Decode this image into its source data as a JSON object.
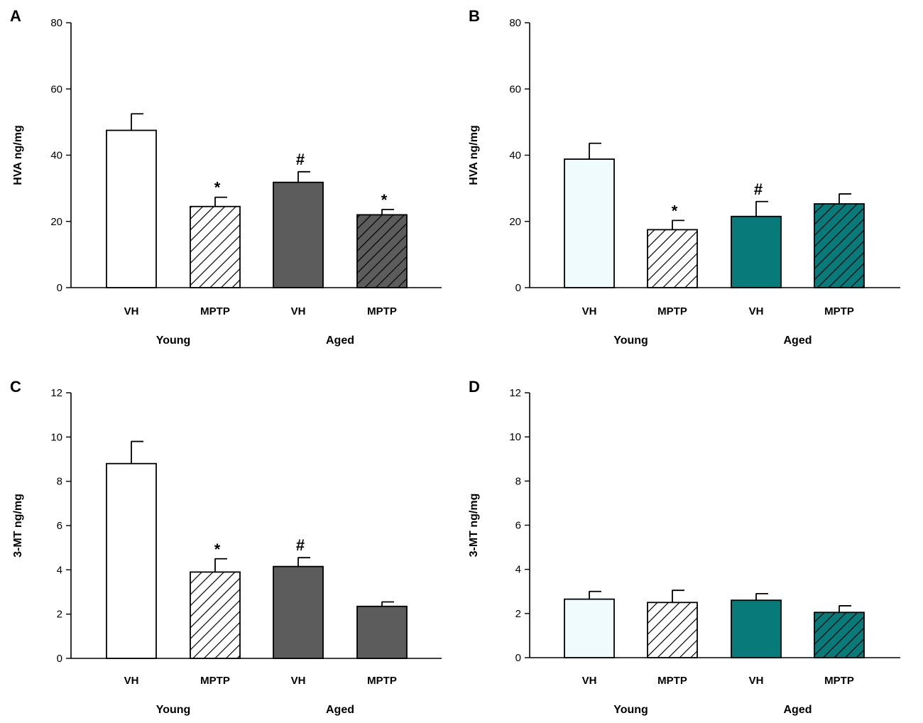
{
  "palette": {
    "white": "#ffffff",
    "light_cyan": "#f0fbfd",
    "dark_gray": "#5c5c5c",
    "teal": "#077a79",
    "axis": "#000000"
  },
  "chart_data": [
    {
      "id": "A",
      "type": "bar",
      "title": "",
      "ylabel": "HVA ng/mg",
      "ylim": [
        0,
        80
      ],
      "yticks": [
        0,
        20,
        40,
        60,
        80
      ],
      "categories": [
        "VH",
        "MPTP",
        "VH",
        "MPTP"
      ],
      "groups": [
        "Young",
        "Aged"
      ],
      "values": [
        47.5,
        24.5,
        31.8,
        22.0
      ],
      "errors": [
        5.0,
        2.8,
        3.2,
        1.6
      ],
      "annotations": [
        "",
        "*",
        "#",
        "*"
      ],
      "fills": [
        "white",
        "white",
        "dark_gray",
        "dark_gray"
      ],
      "hatched": [
        false,
        true,
        false,
        true
      ]
    },
    {
      "id": "B",
      "type": "bar",
      "title": "",
      "ylabel": "HVA ng/mg",
      "ylim": [
        0,
        80
      ],
      "yticks": [
        0,
        20,
        40,
        60,
        80
      ],
      "categories": [
        "VH",
        "MPTP",
        "VH",
        "MPTP"
      ],
      "groups": [
        "Young",
        "Aged"
      ],
      "values": [
        38.8,
        17.5,
        21.5,
        25.3
      ],
      "errors": [
        4.8,
        2.8,
        4.5,
        3.0
      ],
      "annotations": [
        "",
        "*",
        "#",
        ""
      ],
      "fills": [
        "light_cyan",
        "white",
        "teal",
        "teal"
      ],
      "hatched": [
        false,
        true,
        false,
        true
      ]
    },
    {
      "id": "C",
      "type": "bar",
      "title": "",
      "ylabel": "3-MT ng/mg",
      "ylim": [
        0,
        12
      ],
      "yticks": [
        0,
        2,
        4,
        6,
        8,
        10,
        12
      ],
      "categories": [
        "VH",
        "MPTP",
        "VH",
        "MPTP"
      ],
      "groups": [
        "Young",
        "Aged"
      ],
      "values": [
        8.8,
        3.9,
        4.15,
        2.35
      ],
      "errors": [
        1.0,
        0.6,
        0.4,
        0.2
      ],
      "annotations": [
        "",
        "*",
        "#",
        ""
      ],
      "fills": [
        "white",
        "white",
        "dark_gray",
        "dark_gray"
      ],
      "hatched": [
        false,
        true,
        false,
        false
      ]
    },
    {
      "id": "D",
      "type": "bar",
      "title": "",
      "ylabel": "3-MT ng/mg",
      "ylim": [
        0,
        12
      ],
      "yticks": [
        0,
        2,
        4,
        6,
        8,
        10,
        12
      ],
      "categories": [
        "VH",
        "MPTP",
        "VH",
        "MPTP"
      ],
      "groups": [
        "Young",
        "Aged"
      ],
      "values": [
        2.65,
        2.5,
        2.6,
        2.05
      ],
      "errors": [
        0.35,
        0.55,
        0.3,
        0.3
      ],
      "annotations": [
        "",
        "",
        "",
        ""
      ],
      "fills": [
        "light_cyan",
        "white",
        "teal",
        "teal"
      ],
      "hatched": [
        false,
        true,
        false,
        true
      ]
    }
  ]
}
